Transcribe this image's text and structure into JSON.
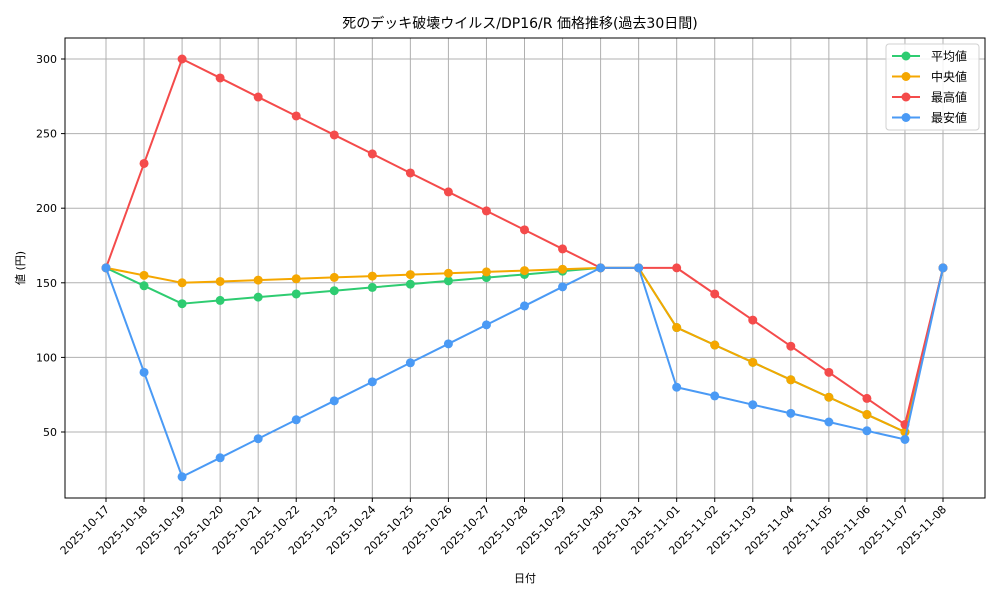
{
  "chart_data": {
    "type": "line",
    "title": "死のデッキ破壊ウイルス/DP16/R 価格推移(過去30日間)",
    "xlabel": "日付",
    "ylabel": "値 (円)",
    "ylim": [
      10.5,
      314.5
    ],
    "yticks": [
      50,
      100,
      150,
      200,
      250,
      300
    ],
    "grid": true,
    "legend_position": "upper right",
    "categories": [
      "2025-10-17",
      "2025-10-18",
      "2025-10-19",
      "2025-10-20",
      "2025-10-21",
      "2025-10-22",
      "2025-10-23",
      "2025-10-24",
      "2025-10-25",
      "2025-10-26",
      "2025-10-27",
      "2025-10-28",
      "2025-10-29",
      "2025-10-30",
      "2025-10-31",
      "2025-11-01",
      "2025-11-02",
      "2025-11-03",
      "2025-11-04",
      "2025-11-05",
      "2025-11-06",
      "2025-11-07",
      "2025-11-08"
    ],
    "series": [
      {
        "name": "平均値",
        "color": "#2ecc71",
        "values": [
          160,
          148,
          136,
          138.2,
          140.4,
          142.5,
          144.7,
          146.9,
          149.1,
          151.3,
          153.5,
          155.6,
          157.8,
          160,
          160,
          120,
          108.3,
          96.7,
          85,
          73.3,
          61.7,
          50,
          160
        ]
      },
      {
        "name": "中央値",
        "color": "#f5a700",
        "values": [
          160,
          155,
          150,
          150.9,
          151.8,
          152.7,
          153.6,
          154.5,
          155.5,
          156.4,
          157.3,
          158.2,
          159.1,
          160,
          160,
          120,
          108.3,
          96.7,
          85,
          73.3,
          61.7,
          50,
          160
        ]
      },
      {
        "name": "最高値",
        "color": "#f44b4b",
        "values": [
          160,
          230,
          300,
          287.3,
          274.5,
          261.8,
          249.1,
          236.4,
          223.6,
          210.9,
          198.2,
          185.5,
          172.7,
          160,
          160,
          160,
          142.5,
          125,
          107.5,
          90,
          72.5,
          55,
          160
        ]
      },
      {
        "name": "最安値",
        "color": "#4a9af5",
        "values": [
          160,
          90,
          20,
          32.7,
          45.5,
          58.2,
          70.9,
          83.6,
          96.4,
          109.1,
          121.8,
          134.5,
          147.3,
          160,
          160,
          80,
          74.2,
          68.3,
          62.5,
          56.7,
          50.8,
          45,
          160
        ]
      }
    ]
  }
}
